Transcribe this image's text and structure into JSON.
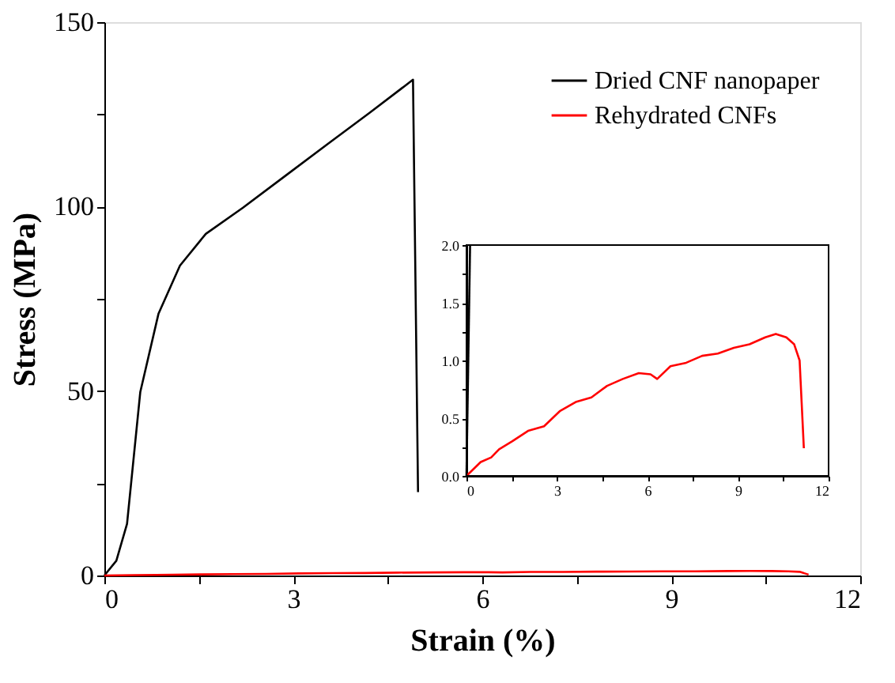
{
  "chart_data": [
    {
      "type": "line",
      "xlabel": "Strain (%)",
      "ylabel": "Stress (MPa)",
      "legend": "top right",
      "grid": false,
      "xlim": [
        0,
        12
      ],
      "ylim": [
        0,
        150
      ],
      "xticks": [
        0,
        {
          "value": 1.5,
          "label": null
        },
        3,
        {
          "value": 4.5,
          "label": null
        },
        6,
        {
          "value": 7.5,
          "label": null
        },
        9,
        {
          "value": 10.5,
          "label": null
        },
        12
      ],
      "yticks": [
        0,
        {
          "value": 25,
          "label": null
        },
        50,
        {
          "value": 75,
          "label": null
        },
        100,
        {
          "value": 125,
          "label": null
        },
        150
      ],
      "series": [
        {
          "name": "Dried CNF nanopaper",
          "color": "#000000",
          "x": [
            0,
            0.19,
            0.36,
            0.57,
            0.86,
            1.2,
            1.61,
            2.2,
            2.87,
            3.54,
            4.21,
            4.9,
            4.98
          ],
          "values": [
            0,
            4,
            14,
            49.7,
            71,
            84,
            92.6,
            99.7,
            108.3,
            116.9,
            125.4,
            134.4,
            22.6
          ]
        },
        {
          "name": "Rehydrated CNFs",
          "color": "#ff0000",
          "x": [
            0,
            0.47,
            0.82,
            1.08,
            1.52,
            2.04,
            2.57,
            3.09,
            3.62,
            4.14,
            4.66,
            5.18,
            5.71,
            6.1,
            6.32,
            6.76,
            7.28,
            7.81,
            8.33,
            8.86,
            9.38,
            9.9,
            10.25,
            10.6,
            10.86,
            11.04,
            11.18
          ],
          "values": [
            0,
            0.12,
            0.16,
            0.23,
            0.3,
            0.39,
            0.43,
            0.56,
            0.64,
            0.68,
            0.78,
            0.84,
            0.89,
            0.88,
            0.84,
            0.95,
            0.98,
            1.04,
            1.06,
            1.11,
            1.14,
            1.2,
            1.23,
            1.2,
            1.14,
            1.0,
            0.24
          ]
        }
      ]
    },
    {
      "type": "line",
      "grid": false,
      "xlim": [
        0,
        12
      ],
      "ylim": [
        0,
        2
      ],
      "xticks": [
        0,
        {
          "value": 1.5,
          "label": null
        },
        3,
        {
          "value": 4.5,
          "label": null
        },
        6,
        {
          "value": 7.5,
          "label": null
        },
        9,
        {
          "value": 10.5,
          "label": null
        },
        12
      ],
      "yticks": [
        {
          "value": 0,
          "label": "0.0"
        },
        {
          "value": 0.25,
          "label": null
        },
        {
          "value": 0.5,
          "label": "0.5"
        },
        {
          "value": 0.75,
          "label": null
        },
        {
          "value": 1,
          "label": "1.0"
        },
        {
          "value": 1.25,
          "label": null
        },
        {
          "value": 1.5,
          "label": "1.5"
        },
        {
          "value": 1.75,
          "label": null
        },
        {
          "value": 2,
          "label": "2.0"
        }
      ],
      "series": [
        {
          "color": "#000000",
          "x": [
            0,
            0.12
          ],
          "values": [
            0,
            2.0
          ]
        },
        {
          "color": "#ff0000",
          "x": [
            0,
            0.47,
            0.82,
            1.08,
            1.52,
            2.04,
            2.57,
            3.09,
            3.62,
            4.14,
            4.66,
            5.18,
            5.71,
            6.1,
            6.32,
            6.76,
            7.28,
            7.81,
            8.33,
            8.86,
            9.38,
            9.9,
            10.25,
            10.6,
            10.86,
            11.04,
            11.18
          ],
          "values": [
            0,
            0.12,
            0.16,
            0.23,
            0.3,
            0.39,
            0.43,
            0.56,
            0.64,
            0.68,
            0.78,
            0.84,
            0.89,
            0.88,
            0.84,
            0.95,
            0.98,
            1.04,
            1.06,
            1.11,
            1.14,
            1.2,
            1.23,
            1.2,
            1.14,
            1.0,
            0.24
          ]
        }
      ]
    }
  ]
}
